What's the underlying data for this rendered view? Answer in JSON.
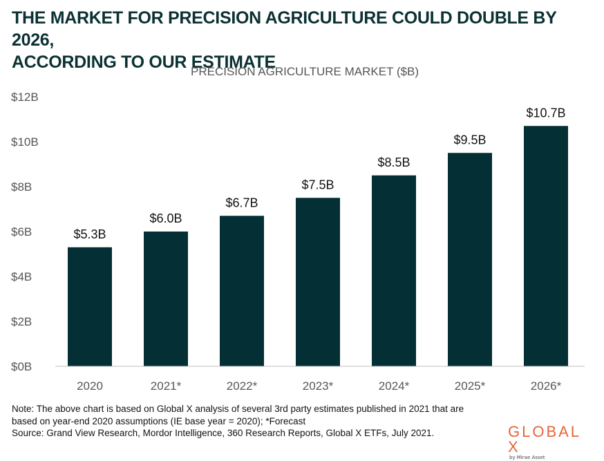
{
  "headline": {
    "line1": "THE MARKET FOR PRECISION AGRICULTURE COULD DOUBLE BY 2026,",
    "line2": "ACCORDING TO OUR ESTIMATE"
  },
  "chart_data": {
    "type": "bar",
    "title": "PRECISION AGRICULTURE MARKET ($B)",
    "categories": [
      "2020",
      "2021*",
      "2022*",
      "2023*",
      "2024*",
      "2025*",
      "2026*"
    ],
    "values": [
      5.3,
      6.0,
      6.7,
      7.5,
      8.5,
      9.5,
      10.7
    ],
    "data_labels": [
      "$5.3B",
      "$6.0B",
      "$6.7B",
      "$7.5B",
      "$8.5B",
      "$9.5B",
      "$10.7B"
    ],
    "y_ticks": [
      0,
      2,
      4,
      6,
      8,
      10,
      12
    ],
    "y_tick_labels": [
      "$0B",
      "$2B",
      "$4B",
      "$6B",
      "$8B",
      "$10B",
      "$12B"
    ],
    "ylim": [
      0,
      12
    ],
    "xlabel": "",
    "ylabel": "",
    "grid": false,
    "bar_color": "#042f35"
  },
  "footer": {
    "note_line1": "Note: The above chart is based on Global X analysis of several 3rd party estimates published in 2021 that are",
    "note_line2": "based on year-end 2020 assumptions (IE base year = 2020); *Forecast",
    "source": "Source: Grand View Research, Mordor Intelligence, 360 Research Reports, Global X ETFs, July 2021."
  },
  "logo": {
    "wordmark": "GLOBAL X",
    "tagline": "by Mirae Asset"
  }
}
